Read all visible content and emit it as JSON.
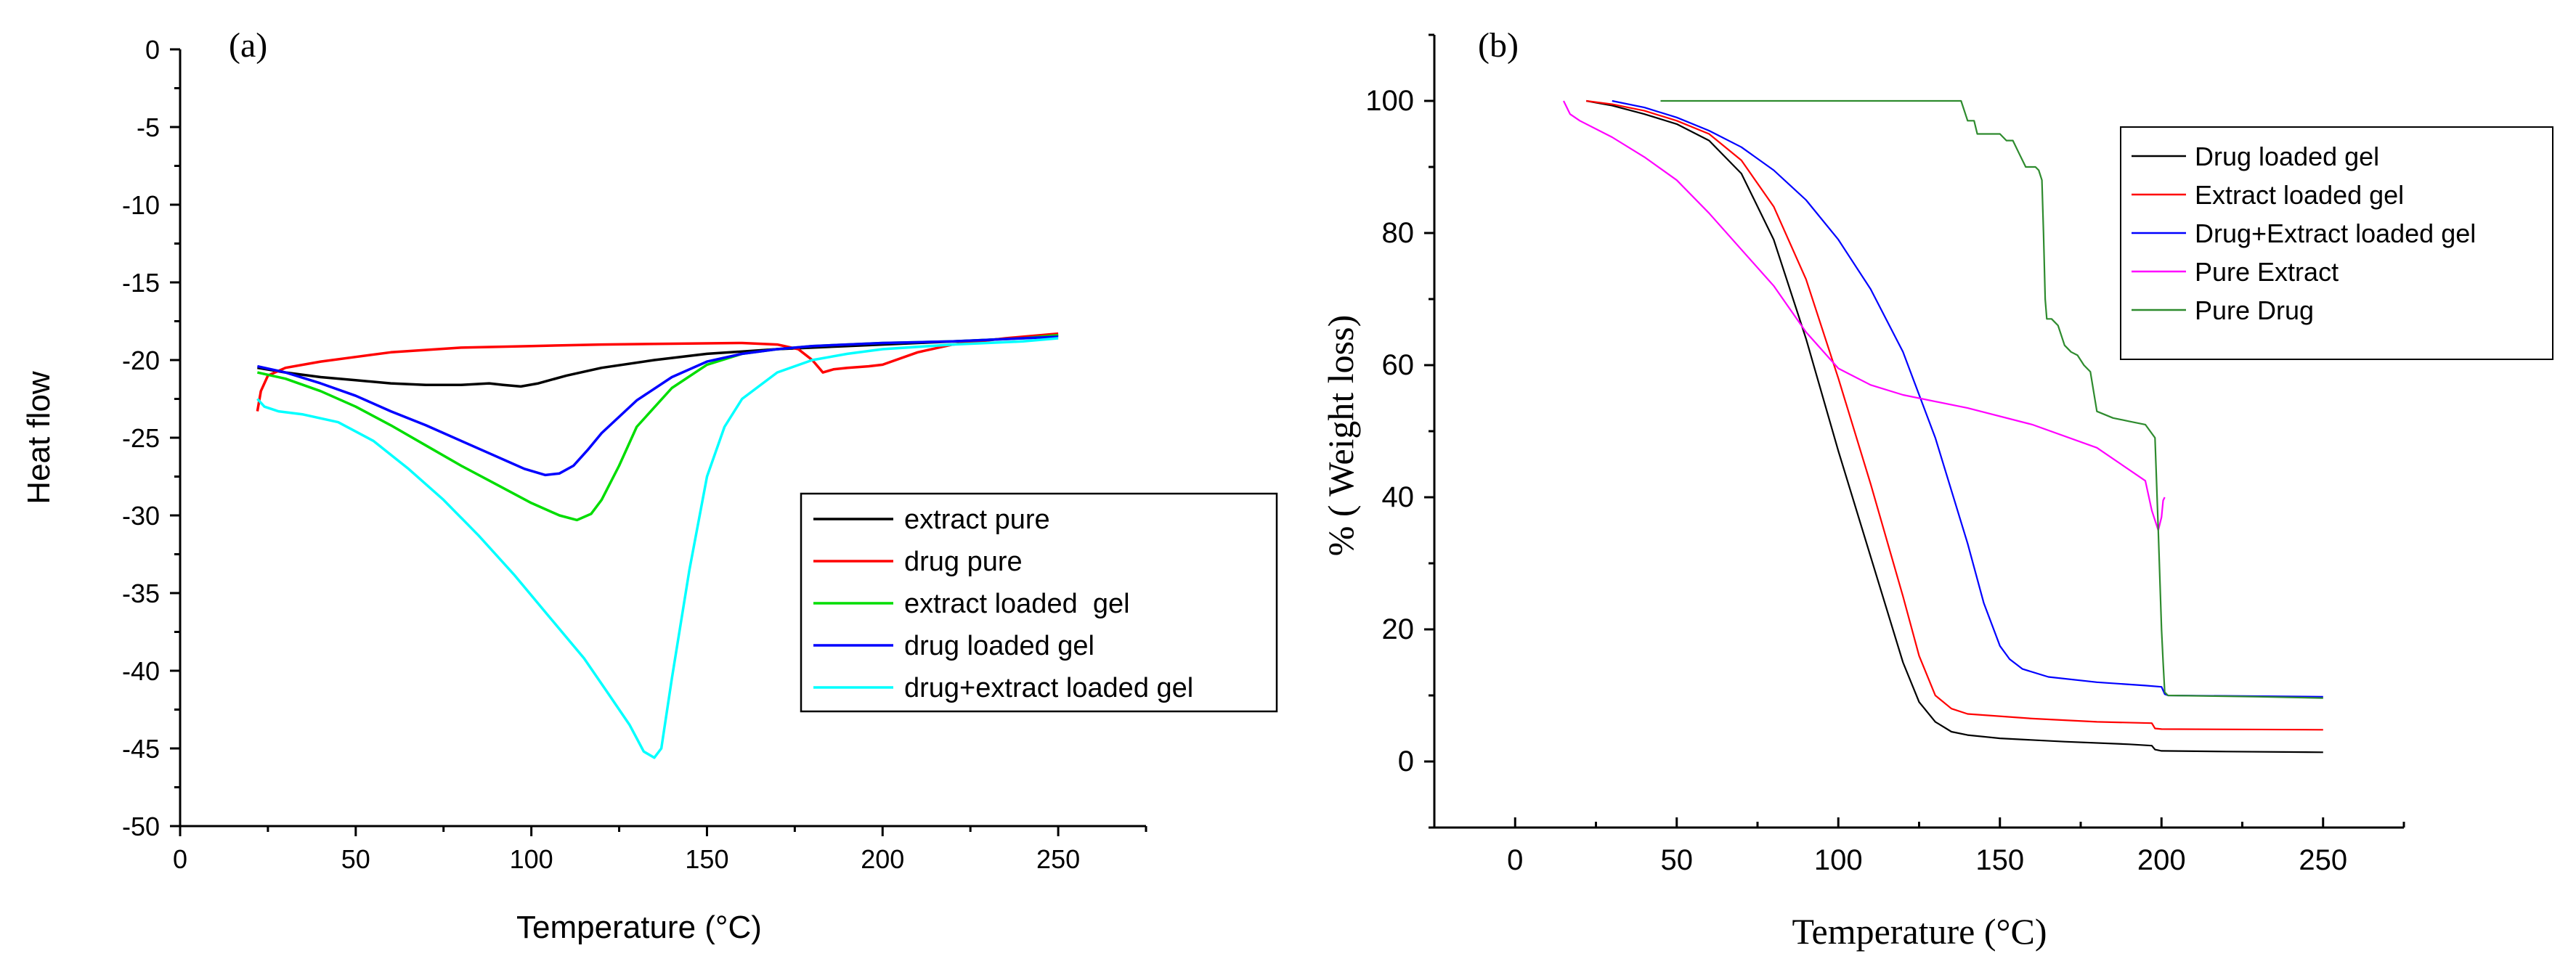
{
  "chart_data": [
    {
      "panel_label": "(a)",
      "type": "line",
      "title": "",
      "xlabel": "Temperature (°C)",
      "ylabel": "Heat flow",
      "xlim": [
        0,
        275
      ],
      "ylim": [
        -50,
        0
      ],
      "xticks": [
        0,
        50,
        100,
        150,
        200,
        250
      ],
      "yticks": [
        0,
        -5,
        -10,
        -15,
        -20,
        -25,
        -30,
        -35,
        -40,
        -45,
        -50
      ],
      "legend_position": "bottom-right",
      "series": [
        {
          "name": "extract pure",
          "color": "#000000",
          "x": [
            22,
            30,
            40,
            50,
            60,
            70,
            80,
            88,
            92,
            97,
            102,
            110,
            120,
            135,
            150,
            170,
            190,
            210,
            230,
            250
          ],
          "y": [
            -20.5,
            -20.8,
            -21.1,
            -21.3,
            -21.5,
            -21.6,
            -21.6,
            -21.5,
            -21.6,
            -21.7,
            -21.5,
            -21.0,
            -20.5,
            -20.0,
            -19.6,
            -19.3,
            -19.1,
            -18.9,
            -18.7,
            -18.4
          ]
        },
        {
          "name": "drug pure",
          "color": "#ff0000",
          "x": [
            22,
            23,
            25,
            30,
            40,
            50,
            60,
            80,
            100,
            120,
            140,
            160,
            170,
            176,
            180,
            183,
            186,
            190,
            196,
            200,
            210,
            220,
            235,
            250
          ],
          "y": [
            -23.3,
            -22.0,
            -21.0,
            -20.5,
            -20.1,
            -19.8,
            -19.5,
            -19.2,
            -19.1,
            -19.0,
            -18.95,
            -18.9,
            -19.0,
            -19.3,
            -20.0,
            -20.8,
            -20.6,
            -20.5,
            -20.4,
            -20.3,
            -19.5,
            -19.0,
            -18.6,
            -18.3
          ]
        },
        {
          "name": "extract loaded  gel",
          "color": "#00dd00",
          "x": [
            22,
            30,
            40,
            50,
            60,
            70,
            80,
            90,
            100,
            108,
            113,
            117,
            120,
            125,
            130,
            140,
            150,
            160,
            170,
            180,
            200,
            220,
            240,
            250
          ],
          "y": [
            -20.8,
            -21.2,
            -22.0,
            -23.0,
            -24.2,
            -25.5,
            -26.8,
            -28.0,
            -29.2,
            -30.0,
            -30.3,
            -29.9,
            -29.0,
            -26.8,
            -24.3,
            -21.8,
            -20.3,
            -19.6,
            -19.3,
            -19.1,
            -18.9,
            -18.8,
            -18.6,
            -18.4
          ]
        },
        {
          "name": "drug loaded gel",
          "color": "#0000ff",
          "x": [
            22,
            30,
            40,
            50,
            60,
            70,
            80,
            90,
            98,
            104,
            108,
            112,
            116,
            120,
            130,
            140,
            150,
            160,
            170,
            180,
            200,
            220,
            240,
            250
          ],
          "y": [
            -20.4,
            -20.8,
            -21.5,
            -22.3,
            -23.3,
            -24.2,
            -25.2,
            -26.2,
            -27.0,
            -27.4,
            -27.3,
            -26.8,
            -25.8,
            -24.7,
            -22.6,
            -21.1,
            -20.1,
            -19.6,
            -19.3,
            -19.1,
            -18.9,
            -18.8,
            -18.6,
            -18.5
          ]
        },
        {
          "name": "drug+extract loaded gel",
          "color": "#00ffff",
          "x": [
            22,
            24,
            28,
            35,
            45,
            55,
            65,
            75,
            85,
            95,
            105,
            115,
            122,
            128,
            132,
            135,
            137,
            140,
            145,
            150,
            155,
            160,
            170,
            180,
            190,
            200,
            220,
            240,
            250
          ],
          "y": [
            -22.5,
            -23.0,
            -23.3,
            -23.5,
            -24.0,
            -25.2,
            -27.0,
            -29.0,
            -31.3,
            -33.8,
            -36.5,
            -39.2,
            -41.5,
            -43.5,
            -45.2,
            -45.6,
            -45.0,
            -40.5,
            -33.5,
            -27.5,
            -24.3,
            -22.5,
            -20.8,
            -20.0,
            -19.6,
            -19.3,
            -19.0,
            -18.8,
            -18.6
          ]
        }
      ]
    },
    {
      "panel_label": "(b)",
      "type": "line",
      "title": "",
      "xlabel": "Temperature (°C)",
      "ylabel": "% ( Weight loss)",
      "xlim": [
        -25,
        275
      ],
      "ylim": [
        -10,
        110
      ],
      "xticks": [
        0,
        50,
        100,
        150,
        200,
        250
      ],
      "yticks": [
        0,
        20,
        40,
        60,
        80,
        100
      ],
      "legend_position": "top-right",
      "series": [
        {
          "name": "Drug loaded gel",
          "color": "#000000",
          "x": [
            22,
            30,
            40,
            50,
            60,
            70,
            80,
            90,
            100,
            110,
            120,
            125,
            130,
            135,
            140,
            150,
            170,
            190,
            197,
            198,
            200,
            220,
            250
          ],
          "y": [
            100,
            99.3,
            98.0,
            96.5,
            94.0,
            89.0,
            79.0,
            64.0,
            47.0,
            31.0,
            15.0,
            9.0,
            6.0,
            4.5,
            4.0,
            3.5,
            3.0,
            2.6,
            2.4,
            1.8,
            1.6,
            1.5,
            1.4
          ]
        },
        {
          "name": "Extract loaded gel",
          "color": "#ff0000",
          "x": [
            22,
            30,
            40,
            50,
            60,
            70,
            80,
            90,
            100,
            110,
            120,
            125,
            130,
            135,
            140,
            160,
            180,
            197,
            198,
            200,
            250
          ],
          "y": [
            100,
            99.5,
            98.5,
            97.0,
            95.0,
            91.0,
            84.0,
            73.0,
            58.0,
            42.0,
            25.0,
            16.0,
            10.0,
            8.0,
            7.2,
            6.5,
            6.0,
            5.8,
            5.0,
            4.9,
            4.8
          ]
        },
        {
          "name": "Drug+Extract loaded gel",
          "color": "#0000ff",
          "x": [
            30,
            40,
            50,
            60,
            70,
            80,
            90,
            100,
            110,
            120,
            130,
            140,
            145,
            150,
            153,
            157,
            165,
            180,
            195,
            200,
            201,
            202,
            250
          ],
          "y": [
            100,
            99.0,
            97.5,
            95.5,
            93.0,
            89.5,
            85.0,
            79.0,
            71.5,
            62.0,
            49.0,
            33.0,
            24.0,
            17.5,
            15.5,
            14.0,
            12.8,
            12.0,
            11.5,
            11.3,
            10.2,
            10.0,
            9.8
          ]
        },
        {
          "name": "Pure Extract",
          "color": "#ff00ff",
          "x": [
            15,
            17,
            20,
            30,
            40,
            50,
            60,
            70,
            80,
            90,
            100,
            110,
            120,
            140,
            160,
            180,
            195,
            197,
            199,
            200,
            200.5,
            201
          ],
          "y": [
            100,
            98.0,
            97.0,
            94.5,
            91.5,
            88.0,
            83.0,
            77.5,
            72.0,
            65.0,
            59.5,
            57.0,
            55.5,
            53.5,
            51.0,
            47.5,
            42.5,
            38.0,
            35.0,
            37.0,
            39.5,
            40.0
          ]
        },
        {
          "name": "Pure Drug",
          "color": "#2e8b2e",
          "x": [
            45,
            80,
            110,
            138,
            140,
            142,
            143,
            145,
            150,
            152,
            154,
            156,
            158,
            161,
            162,
            163,
            163.5,
            164,
            164.5,
            166,
            168,
            170,
            172,
            174,
            176,
            178,
            179,
            180,
            185,
            190,
            195,
            198,
            199,
            200,
            200.5,
            201,
            202,
            230,
            250
          ],
          "y": [
            100,
            100,
            100,
            100,
            97.0,
            97.0,
            95.0,
            95.0,
            95.0,
            94.0,
            94.0,
            92.0,
            90.0,
            90.0,
            89.5,
            88.0,
            80.0,
            70.0,
            67.0,
            67.0,
            66.0,
            63.0,
            62.0,
            61.5,
            60.0,
            59.0,
            56.0,
            53.0,
            52.0,
            51.5,
            51.0,
            49.0,
            35.0,
            20.0,
            15.0,
            10.5,
            10.0,
            9.8,
            9.6
          ]
        }
      ]
    }
  ]
}
